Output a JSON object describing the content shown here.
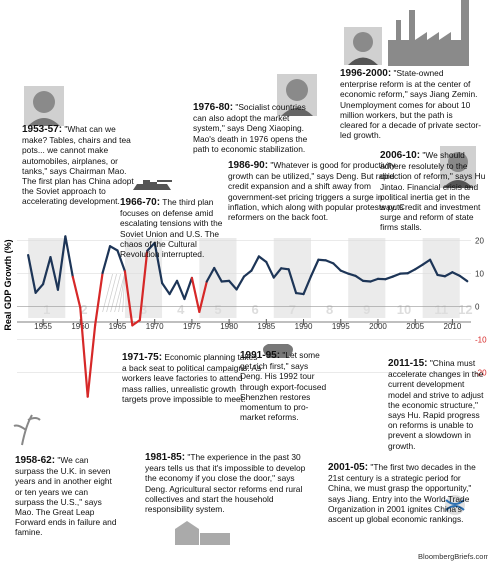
{
  "chart_data": {
    "type": "line",
    "y_label": "Real GDP Growth (%)",
    "x": [
      1953,
      1954,
      1955,
      1956,
      1957,
      1958,
      1959,
      1960,
      1961,
      1962,
      1963,
      1964,
      1965,
      1966,
      1967,
      1968,
      1969,
      1970,
      1971,
      1972,
      1973,
      1974,
      1975,
      1976,
      1977,
      1978,
      1979,
      1980,
      1981,
      1982,
      1983,
      1984,
      1985,
      1986,
      1987,
      1988,
      1989,
      1990,
      1991,
      1992,
      1993,
      1994,
      1995,
      1996,
      1997,
      1998,
      1999,
      2000,
      2001,
      2002,
      2003,
      2004,
      2005,
      2006,
      2007,
      2008,
      2009,
      2010,
      2011,
      2012
    ],
    "series": [
      {
        "name": "Real GDP Growth",
        "color": "#1d3557",
        "negative_color": "#d62828",
        "values": [
          15.6,
          4.2,
          6.8,
          15,
          5.1,
          21.3,
          9,
          -0.3,
          -27.3,
          -5.6,
          10.2,
          18.3,
          17,
          10.7,
          -5.7,
          -4.1,
          16.9,
          19.3,
          7.1,
          3.8,
          7.8,
          2.3,
          8.7,
          -1.6,
          7.6,
          11.7,
          7.6,
          7.8,
          5.2,
          9.1,
          10.9,
          15.2,
          13.5,
          8.8,
          11.6,
          11.3,
          4.1,
          3.8,
          9.2,
          14.2,
          14,
          13.1,
          10.9,
          10,
          9.3,
          7.8,
          7.6,
          8.4,
          8.3,
          9.1,
          10,
          10.1,
          11.3,
          12.7,
          14.2,
          9.6,
          9.2,
          10.4,
          9.3,
          7.7
        ]
      }
    ],
    "xlim": [
      1951.5,
      2012.5
    ],
    "xticks": [
      1955,
      1960,
      1965,
      1970,
      1975,
      1980,
      1985,
      1990,
      1995,
      2000,
      2005,
      2010
    ],
    "ylim": [
      -28,
      22
    ],
    "yticks": [
      -20,
      -10,
      0,
      10,
      20
    ],
    "grid": true,
    "plans": [
      {
        "label": "1",
        "start": 1953,
        "end": 1958
      },
      {
        "label": "2",
        "start": 1958,
        "end": 1963
      },
      {
        "label": "3",
        "start": 1966,
        "end": 1971
      },
      {
        "label": "4",
        "start": 1971,
        "end": 1976
      },
      {
        "label": "5",
        "start": 1976,
        "end": 1981
      },
      {
        "label": "6",
        "start": 1981,
        "end": 1986
      },
      {
        "label": "7",
        "start": 1986,
        "end": 1991
      },
      {
        "label": "8",
        "start": 1991,
        "end": 1996
      },
      {
        "label": "9",
        "start": 1996,
        "end": 2001
      },
      {
        "label": "10",
        "start": 2001,
        "end": 2006
      },
      {
        "label": "11",
        "start": 2006,
        "end": 2011
      },
      {
        "label": "12",
        "start": 2011,
        "end": 2012.5
      }
    ],
    "annotations": [
      {
        "period": "1953-57:",
        "text": "\"What can we make? Tables, chairs and tea pots... we cannot make automobiles, airplanes, or tanks,\" says Chairman Mao. The first plan has China adopt the Soviet approach to accelerating development."
      },
      {
        "period": "1966-70:",
        "text": "The third plan focuses on defense amid escalating tensions with the Soviet Union and U.S. The chaos of the Cultural Revolution interrupted."
      },
      {
        "period": "1976-80:",
        "text": "\"Socialist countries can also adopt the market system,\" says Deng Xiaoping. Mao's death in 1976 opens the path to economic stabilization."
      },
      {
        "period": "1986-90:",
        "text": "\"Whatever is good for productivity growth can be utilized,\" says Deng. But rapid credit expansion and a shift away from government-set pricing triggers a surge in inflation, which along with popular protests puts reformers on the back foot."
      },
      {
        "period": "1996-2000:",
        "text": "\"State-owned enterprise reform is at the center of economic reform,\" says Jiang Zemin. Unemployment comes for about 10 million workers, but the path is cleared for a decade of private sector-led growth."
      },
      {
        "period": "2006-10:",
        "text": "\"We should adhere resolutely to the direction of reform,\" says Hu Jintao. Financial crisis and political inertia get in the way. Credit and investment surge and reform of state firms stalls."
      },
      {
        "period": "1971-75:",
        "text": "Economic planning takes a back seat to political campaigns. As workers leave factories to attend mass rallies, unrealistic growth targets prove impossible to meet."
      },
      {
        "period": "1991-95:",
        "text": "\"Let some get rich first,\" says Deng. His 1992 tour through export-focused Shenzhen restores momentum to pro-market reforms."
      },
      {
        "period": "2011-15:",
        "text": "\"China must accelerate changes in the current development model and strive to adjust the economic structure,\" says Hu. Rapid progress on reforms is unable to prevent a slowdown in growth."
      },
      {
        "period": "1958-62:",
        "text": "\"We can surpass the U.K. in seven years and in another eight or ten years we can surpass the U.S.,\" says Mao. The Great Leap Forward ends in failure and famine."
      },
      {
        "period": "1981-85:",
        "text": "\"The experience in the past 30 years tells us that it's impossible to develop the economy if you close the door,\" says Deng. Agricultural sector reforms end rural collectives and start the household responsibility system."
      },
      {
        "period": "2001-05:",
        "text": "\"The first two decades in the 21st century is a strategic period for China, we must grasp the opportunity,\" says Jiang. Entry into the World Trade Organization in 2001 ignites China's ascent up global economic rankings."
      }
    ],
    "source": "BloombergBriefs.com"
  }
}
